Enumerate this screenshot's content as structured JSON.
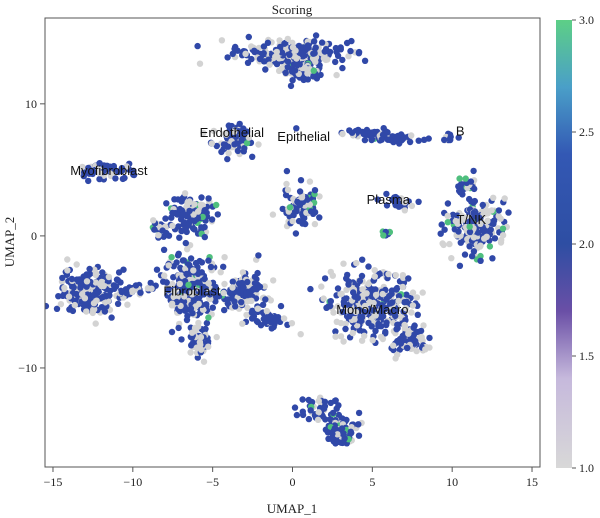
{
  "chart_data": {
    "type": "scatter",
    "title": "Scoring",
    "xlabel": "UMAP_1",
    "ylabel": "UMAP_2",
    "xlim": [
      -15.5,
      15.5
    ],
    "ylim": [
      -17.5,
      16.5
    ],
    "xticks": [
      -15,
      -10,
      -5,
      0,
      5,
      10,
      15
    ],
    "yticks": [
      -10,
      0,
      10
    ],
    "grid": false,
    "legend": "colorbar-right",
    "colorbar": {
      "range": [
        1.0,
        3.0
      ],
      "ticks": [
        "1.0",
        "1.5",
        "2.0",
        "2.5",
        "3.0"
      ],
      "colors": [
        "#d8d8d8",
        "#c6b9dc",
        "#6a4fa6",
        "#2e4ea3",
        "#3358b4",
        "#4a9fc8",
        "#5dcf86"
      ]
    },
    "clusters": [
      {
        "label": "Endothelial",
        "x": -3.8,
        "y": 7.5
      },
      {
        "label": "Epithelial",
        "x": 0.7,
        "y": 7.2
      },
      {
        "label": "B",
        "x": 10.5,
        "y": 7.6
      },
      {
        "label": "Myofibroblast",
        "x": -11.5,
        "y": 4.6
      },
      {
        "label": "Plasma",
        "x": 6.0,
        "y": 2.4
      },
      {
        "label": "T/NK",
        "x": 11.2,
        "y": 0.9
      },
      {
        "label": "Fibroblast",
        "x": -6.3,
        "y": -4.5
      },
      {
        "label": "Mono/Macro",
        "x": 5.0,
        "y": -5.9
      }
    ],
    "point_score_levels": {
      "low": 1.0,
      "mid": 2.0,
      "high": 3.0
    }
  }
}
